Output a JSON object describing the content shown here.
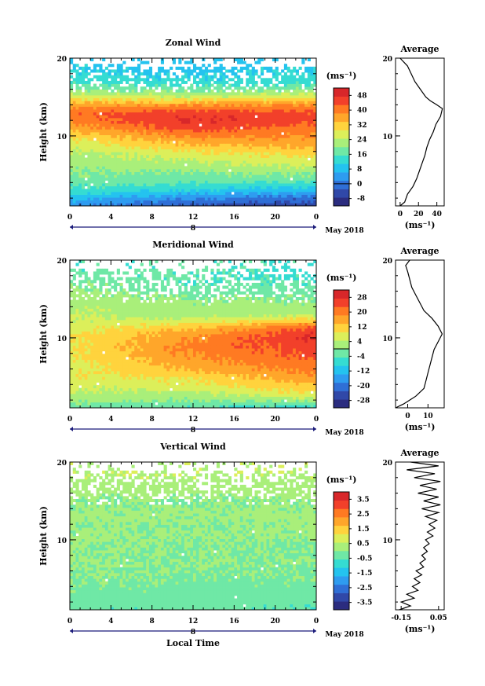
{
  "figure": {
    "x_label": "Local Time",
    "date_label": "May 2018",
    "day_label": "8",
    "unit_label": "(ms⁻¹)",
    "average_title": "Average",
    "colors": {
      "ramp": [
        "#2b2c7f",
        "#3048a8",
        "#2f6fd6",
        "#2e9cf0",
        "#24c3ef",
        "#35dcd2",
        "#6fe8a6",
        "#a9ef7a",
        "#dcef5a",
        "#ffd33d",
        "#ffa62a",
        "#ff7a22",
        "#f2402a",
        "#d8272a"
      ]
    }
  },
  "chart_data": [
    {
      "type": "heatmap",
      "title": "Zonal Wind",
      "ylabel": "Height (km)",
      "x": [
        0,
        4,
        8,
        12,
        16,
        20,
        0
      ],
      "xlim": [
        0,
        24
      ],
      "ylim": [
        1,
        20
      ],
      "y_ticks": [
        10,
        20
      ],
      "colorbar": {
        "ticks": [
          -8,
          0,
          8,
          16,
          24,
          32,
          40,
          48
        ],
        "range": [
          -12,
          52
        ],
        "zero_line": 0
      },
      "field_profile": {
        "heights": [
          1,
          2,
          3,
          4,
          5,
          6,
          7,
          8,
          9,
          10,
          11,
          12,
          13,
          14,
          15,
          16,
          17,
          18,
          19
        ],
        "early": [
          2,
          8,
          14,
          17,
          19,
          21,
          22,
          24,
          27,
          30,
          35,
          40,
          42,
          36,
          28,
          20,
          14,
          12,
          10
        ],
        "midday": [
          -4,
          2,
          10,
          16,
          19,
          22,
          25,
          29,
          34,
          40,
          45,
          48,
          46,
          38,
          26,
          18,
          12,
          10,
          8
        ],
        "late": [
          -6,
          -2,
          8,
          15,
          20,
          24,
          28,
          32,
          36,
          38,
          40,
          44,
          44,
          38,
          28,
          20,
          14,
          12,
          10
        ]
      },
      "missing_above_km": 15.5,
      "average_profile": {
        "xlim": [
          -5,
          48
        ],
        "x_ticks": [
          0,
          20,
          40
        ],
        "points": [
          [
            0,
            1
          ],
          [
            5,
            1.5
          ],
          [
            8,
            2.5
          ],
          [
            14,
            3.5
          ],
          [
            18,
            4.5
          ],
          [
            21,
            5.5
          ],
          [
            24,
            6.5
          ],
          [
            27,
            7.5
          ],
          [
            29,
            8.5
          ],
          [
            32,
            9.5
          ],
          [
            36,
            10.5
          ],
          [
            39,
            11.5
          ],
          [
            44,
            12.5
          ],
          [
            46,
            13.5
          ],
          [
            40,
            14
          ],
          [
            33,
            14.5
          ],
          [
            28,
            15
          ],
          [
            22,
            16
          ],
          [
            16,
            17
          ],
          [
            12,
            18
          ],
          [
            8,
            19
          ],
          [
            0,
            20
          ]
        ]
      }
    },
    {
      "type": "heatmap",
      "title": "Meridional Wind",
      "ylabel": "Height (km)",
      "x": [
        0,
        4,
        8,
        12,
        16,
        20,
        0
      ],
      "xlim": [
        0,
        24
      ],
      "ylim": [
        1,
        20
      ],
      "y_ticks": [
        10,
        20
      ],
      "colorbar": {
        "ticks": [
          -28,
          -20,
          -12,
          -4,
          4,
          12,
          20,
          28
        ],
        "range": [
          -32,
          32
        ],
        "zero_line": 0
      },
      "field_profile": {
        "heights": [
          1,
          2,
          3,
          4,
          5,
          6,
          7,
          8,
          9,
          10,
          11,
          12,
          13,
          14,
          15,
          16,
          17,
          18,
          19
        ],
        "early": [
          -4,
          2,
          4,
          6,
          8,
          8,
          8,
          9,
          8,
          9,
          8,
          6,
          4,
          4,
          2,
          2,
          0,
          -2,
          -4
        ],
        "midday": [
          -4,
          0,
          4,
          8,
          10,
          14,
          17,
          19,
          20,
          18,
          15,
          8,
          2,
          2,
          0,
          -2,
          -4,
          -4,
          -4
        ],
        "late": [
          -8,
          2,
          10,
          14,
          18,
          21,
          22,
          24,
          26,
          28,
          26,
          16,
          4,
          2,
          0,
          -2,
          -4,
          -6,
          -6
        ]
      },
      "missing_above_km": 14.5,
      "average_profile": {
        "xlim": [
          -6,
          18
        ],
        "x_ticks": [
          0,
          10
        ],
        "points": [
          [
            -6,
            1
          ],
          [
            -2,
            1.5
          ],
          [
            4,
            2.5
          ],
          [
            8,
            3.5
          ],
          [
            9,
            4.5
          ],
          [
            10,
            5.5
          ],
          [
            11,
            6.5
          ],
          [
            12,
            7.5
          ],
          [
            13,
            8.5
          ],
          [
            15,
            9.5
          ],
          [
            17,
            10.5
          ],
          [
            15,
            11.5
          ],
          [
            12,
            12.5
          ],
          [
            8,
            13.5
          ],
          [
            6,
            14.5
          ],
          [
            4,
            15.5
          ],
          [
            2,
            16.5
          ],
          [
            1,
            17.5
          ],
          [
            0,
            18.5
          ],
          [
            -1,
            19.3
          ],
          [
            1,
            20
          ]
        ]
      }
    },
    {
      "type": "heatmap",
      "title": "Vertical Wind",
      "ylabel": "Height (km)",
      "x": [
        0,
        4,
        8,
        12,
        16,
        20,
        0
      ],
      "xlim": [
        0,
        24
      ],
      "ylim": [
        1,
        20
      ],
      "y_ticks": [
        10,
        20
      ],
      "colorbar": {
        "ticks": [
          -3.5,
          -2.5,
          -1.5,
          -0.5,
          0.5,
          1.5,
          2.5,
          3.5
        ],
        "range": [
          -4,
          4
        ],
        "zero_line": null
      },
      "field_profile": {
        "heights": [
          1,
          2,
          3,
          4,
          5,
          6,
          7,
          8,
          9,
          10,
          11,
          12,
          13,
          14,
          15,
          16,
          17,
          18,
          19
        ],
        "early": [
          -0.4,
          -0.3,
          -0.2,
          -0.1,
          0,
          0,
          0.1,
          0,
          0,
          0.1,
          0.1,
          0,
          0.2,
          0.1,
          0,
          0.2,
          0.3,
          0.4,
          0.5
        ],
        "midday": [
          -0.4,
          -0.3,
          -0.2,
          -0.2,
          -0.1,
          0,
          0,
          0,
          0,
          0,
          0.1,
          0,
          0.1,
          0.1,
          0,
          0.2,
          0.3,
          0.4,
          0.5
        ],
        "late": [
          -0.5,
          -0.4,
          -0.3,
          -0.2,
          -0.1,
          -0.1,
          0,
          0,
          0,
          0,
          0.1,
          0.1,
          0.2,
          0.1,
          0.1,
          0.2,
          0.3,
          0.4,
          0.5
        ]
      },
      "missing_above_km": 14.5,
      "average_profile": {
        "xlim": [
          -0.18,
          0.08
        ],
        "x_ticks": [
          -0.15,
          0.05
        ],
        "x_tick_labels": [
          "-0.15",
          "0.05"
        ],
        "points": [
          [
            -0.16,
            1
          ],
          [
            -0.1,
            1.5
          ],
          [
            -0.15,
            2
          ],
          [
            -0.08,
            2.5
          ],
          [
            -0.12,
            3
          ],
          [
            -0.06,
            3.5
          ],
          [
            -0.09,
            4
          ],
          [
            -0.05,
            4.5
          ],
          [
            -0.08,
            5
          ],
          [
            -0.04,
            5.5
          ],
          [
            -0.07,
            6
          ],
          [
            -0.03,
            6.5
          ],
          [
            -0.05,
            7
          ],
          [
            -0.02,
            7.5
          ],
          [
            -0.04,
            8
          ],
          [
            -0.01,
            8.5
          ],
          [
            -0.03,
            9
          ],
          [
            0.0,
            9.5
          ],
          [
            -0.02,
            10
          ],
          [
            0.02,
            10.5
          ],
          [
            -0.01,
            11
          ],
          [
            0.03,
            11.5
          ],
          [
            0.0,
            12
          ],
          [
            0.04,
            12.5
          ],
          [
            -0.02,
            13
          ],
          [
            0.05,
            13.5
          ],
          [
            -0.04,
            14
          ],
          [
            0.06,
            14.5
          ],
          [
            -0.03,
            15
          ],
          [
            0.05,
            15.5
          ],
          [
            -0.06,
            16
          ],
          [
            0.04,
            16.5
          ],
          [
            -0.05,
            17
          ],
          [
            0.06,
            17.5
          ],
          [
            -0.08,
            18
          ],
          [
            0.03,
            18.5
          ],
          [
            -0.12,
            19
          ],
          [
            0.05,
            19.5
          ],
          [
            -0.1,
            20
          ]
        ]
      }
    }
  ]
}
